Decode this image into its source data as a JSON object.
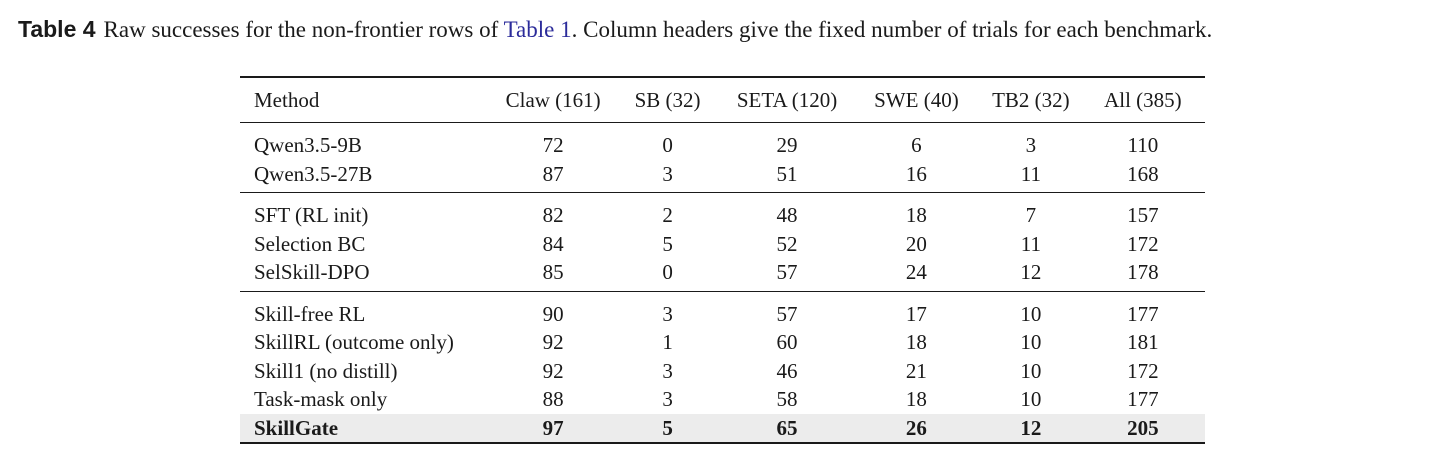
{
  "caption": {
    "label": "Table 4",
    "text_before_link": "Raw successes for the non-frontier rows of ",
    "link": "Table 1",
    "text_after_link": ". Column headers give the fixed number of trials for each benchmark."
  },
  "table": {
    "headers": [
      "Method",
      "Claw (161)",
      "SB (32)",
      "SETA (120)",
      "SWE (40)",
      "TB2 (32)",
      "All (385)"
    ],
    "groups": [
      [
        {
          "method": "Qwen3.5-9B",
          "values": [
            "72",
            "0",
            "29",
            "6",
            "3",
            "110"
          ]
        },
        {
          "method": "Qwen3.5-27B",
          "values": [
            "87",
            "3",
            "51",
            "16",
            "11",
            "168"
          ]
        }
      ],
      [
        {
          "method": "SFT (RL init)",
          "values": [
            "82",
            "2",
            "48",
            "18",
            "7",
            "157"
          ]
        },
        {
          "method": "Selection BC",
          "values": [
            "84",
            "5",
            "52",
            "20",
            "11",
            "172"
          ]
        },
        {
          "method": "SelSkill-DPO",
          "values": [
            "85",
            "0",
            "57",
            "24",
            "12",
            "178"
          ]
        }
      ],
      [
        {
          "method": "Skill-free RL",
          "values": [
            "90",
            "3",
            "57",
            "17",
            "10",
            "177"
          ]
        },
        {
          "method": "SkillRL (outcome only)",
          "values": [
            "92",
            "1",
            "60",
            "18",
            "10",
            "181"
          ]
        },
        {
          "method": "Skill1 (no distill)",
          "values": [
            "92",
            "3",
            "46",
            "21",
            "10",
            "172"
          ]
        },
        {
          "method": "Task-mask only",
          "values": [
            "88",
            "3",
            "58",
            "18",
            "10",
            "177"
          ]
        },
        {
          "method": "SkillGate",
          "values": [
            "97",
            "5",
            "65",
            "26",
            "12",
            "205"
          ],
          "highlight": true
        }
      ]
    ]
  }
}
